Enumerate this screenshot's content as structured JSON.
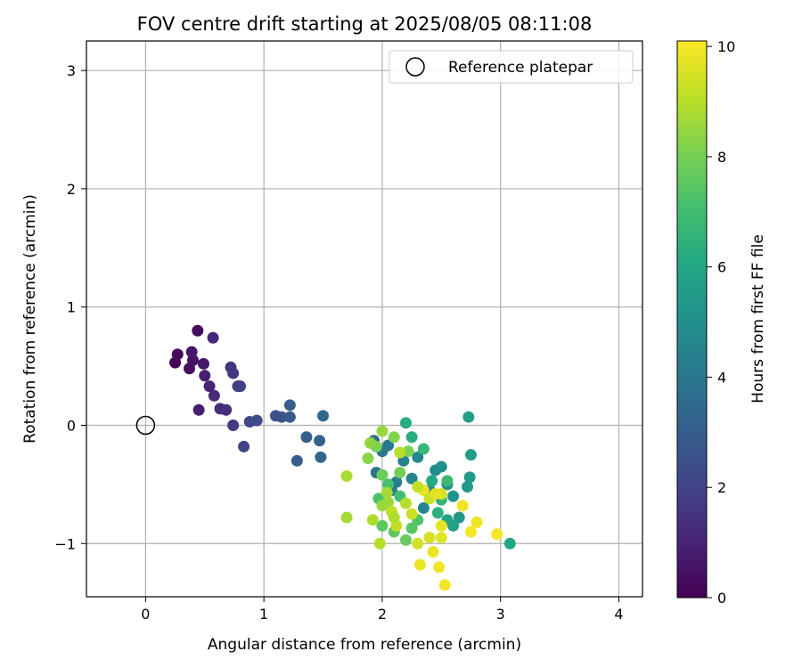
{
  "chart_data": {
    "type": "scatter",
    "title": "FOV centre drift starting at 2025/08/05 08:11:08",
    "xlabel": "Angular distance from reference (arcmin)",
    "ylabel": "Rotation from reference (arcmin)",
    "xlim": [
      -0.5,
      4.2
    ],
    "ylim": [
      -1.45,
      3.25
    ],
    "xticks": [
      0,
      1,
      2,
      3,
      4
    ],
    "yticks": [
      -1,
      0,
      1,
      2,
      3
    ],
    "xtick_labels": [
      "0",
      "1",
      "2",
      "3",
      "4"
    ],
    "ytick_labels": [
      "−1",
      "0",
      "1",
      "2",
      "3"
    ],
    "grid": true,
    "legend": {
      "position": "upper-right",
      "label": "Reference platepar",
      "marker": "open-circle"
    },
    "reference_point": {
      "x": 0,
      "y": 0
    },
    "colorbar": {
      "label": "Hours from first FF file",
      "colormap": "viridis",
      "range": [
        0,
        10.1
      ],
      "ticks": [
        0,
        2,
        4,
        6,
        8,
        10
      ],
      "tick_labels": [
        "0",
        "2",
        "4",
        "6",
        "8",
        "10"
      ]
    },
    "points": [
      {
        "x": 0.25,
        "y": 0.53,
        "hours": 0.1
      },
      {
        "x": 0.27,
        "y": 0.6,
        "hours": 0.2
      },
      {
        "x": 0.44,
        "y": 0.8,
        "hours": 0.3
      },
      {
        "x": 0.37,
        "y": 0.48,
        "hours": 0.4
      },
      {
        "x": 0.4,
        "y": 0.55,
        "hours": 0.5
      },
      {
        "x": 0.39,
        "y": 0.62,
        "hours": 0.6
      },
      {
        "x": 0.49,
        "y": 0.52,
        "hours": 0.7
      },
      {
        "x": 0.45,
        "y": 0.13,
        "hours": 0.8
      },
      {
        "x": 0.5,
        "y": 0.42,
        "hours": 0.9
      },
      {
        "x": 0.54,
        "y": 0.33,
        "hours": 1.0
      },
      {
        "x": 0.57,
        "y": 0.74,
        "hours": 1.1
      },
      {
        "x": 0.58,
        "y": 0.25,
        "hours": 1.2
      },
      {
        "x": 0.63,
        "y": 0.14,
        "hours": 1.3
      },
      {
        "x": 0.68,
        "y": 0.13,
        "hours": 1.4
      },
      {
        "x": 0.72,
        "y": 0.49,
        "hours": 1.5
      },
      {
        "x": 0.74,
        "y": 0.44,
        "hours": 1.6
      },
      {
        "x": 0.74,
        "y": 0.0,
        "hours": 1.7
      },
      {
        "x": 0.78,
        "y": 0.33,
        "hours": 1.8
      },
      {
        "x": 0.8,
        "y": 0.33,
        "hours": 1.9
      },
      {
        "x": 0.83,
        "y": -0.18,
        "hours": 2.0
      },
      {
        "x": 0.88,
        "y": 0.03,
        "hours": 2.1
      },
      {
        "x": 0.94,
        "y": 0.04,
        "hours": 2.3
      },
      {
        "x": 1.1,
        "y": 0.08,
        "hours": 2.5
      },
      {
        "x": 1.15,
        "y": 0.07,
        "hours": 2.6
      },
      {
        "x": 1.22,
        "y": 0.07,
        "hours": 2.8
      },
      {
        "x": 1.22,
        "y": 0.17,
        "hours": 2.9
      },
      {
        "x": 1.28,
        "y": -0.3,
        "hours": 3.0
      },
      {
        "x": 1.36,
        "y": -0.1,
        "hours": 3.1
      },
      {
        "x": 1.47,
        "y": -0.13,
        "hours": 3.2
      },
      {
        "x": 1.48,
        "y": -0.27,
        "hours": 3.3
      },
      {
        "x": 1.5,
        "y": 0.08,
        "hours": 3.4
      },
      {
        "x": 1.93,
        "y": -0.13,
        "hours": 3.6
      },
      {
        "x": 1.95,
        "y": -0.4,
        "hours": 3.8
      },
      {
        "x": 2.0,
        "y": -0.22,
        "hours": 4.0
      },
      {
        "x": 2.05,
        "y": -0.17,
        "hours": 4.1
      },
      {
        "x": 2.08,
        "y": -0.55,
        "hours": 4.2
      },
      {
        "x": 2.12,
        "y": -0.48,
        "hours": 4.3
      },
      {
        "x": 2.18,
        "y": -0.3,
        "hours": 4.4
      },
      {
        "x": 2.25,
        "y": -0.45,
        "hours": 4.5
      },
      {
        "x": 2.3,
        "y": -0.27,
        "hours": 4.6
      },
      {
        "x": 2.35,
        "y": -0.7,
        "hours": 4.7
      },
      {
        "x": 2.4,
        "y": -0.55,
        "hours": 4.8
      },
      {
        "x": 2.45,
        "y": -0.38,
        "hours": 4.9
      },
      {
        "x": 2.5,
        "y": -0.35,
        "hours": 5.0
      },
      {
        "x": 2.55,
        "y": -0.5,
        "hours": 5.1
      },
      {
        "x": 2.6,
        "y": -0.6,
        "hours": 5.2
      },
      {
        "x": 2.65,
        "y": -0.78,
        "hours": 5.3
      },
      {
        "x": 2.72,
        "y": -0.52,
        "hours": 5.4
      },
      {
        "x": 2.74,
        "y": -0.44,
        "hours": 5.5
      },
      {
        "x": 2.75,
        "y": -0.25,
        "hours": 5.6
      },
      {
        "x": 2.73,
        "y": 0.07,
        "hours": 5.7
      },
      {
        "x": 2.6,
        "y": -0.85,
        "hours": 5.8
      },
      {
        "x": 2.55,
        "y": -0.8,
        "hours": 5.9
      },
      {
        "x": 3.08,
        "y": -1.0,
        "hours": 6.0
      },
      {
        "x": 2.42,
        "y": -0.47,
        "hours": 6.1
      },
      {
        "x": 2.2,
        "y": 0.02,
        "hours": 6.2
      },
      {
        "x": 2.25,
        "y": -0.1,
        "hours": 6.3
      },
      {
        "x": 2.47,
        "y": -0.74,
        "hours": 6.4
      },
      {
        "x": 2.5,
        "y": -0.63,
        "hours": 6.6
      },
      {
        "x": 2.35,
        "y": -0.2,
        "hours": 6.7
      },
      {
        "x": 2.55,
        "y": -0.47,
        "hours": 6.8
      },
      {
        "x": 2.15,
        "y": -0.6,
        "hours": 7.0
      },
      {
        "x": 2.05,
        "y": -0.5,
        "hours": 7.1
      },
      {
        "x": 1.97,
        "y": -0.62,
        "hours": 7.2
      },
      {
        "x": 2.3,
        "y": -0.8,
        "hours": 7.3
      },
      {
        "x": 2.25,
        "y": -0.87,
        "hours": 7.4
      },
      {
        "x": 2.0,
        "y": -0.85,
        "hours": 7.5
      },
      {
        "x": 2.1,
        "y": -0.9,
        "hours": 7.6
      },
      {
        "x": 2.2,
        "y": -0.97,
        "hours": 7.7
      },
      {
        "x": 2.0,
        "y": -0.42,
        "hours": 7.8
      },
      {
        "x": 2.15,
        "y": -0.4,
        "hours": 7.9
      },
      {
        "x": 2.22,
        "y": -0.22,
        "hours": 8.0
      },
      {
        "x": 1.95,
        "y": -0.18,
        "hours": 8.1
      },
      {
        "x": 2.1,
        "y": -0.1,
        "hours": 8.2
      },
      {
        "x": 1.88,
        "y": -0.28,
        "hours": 8.3
      },
      {
        "x": 1.9,
        "y": -0.15,
        "hours": 8.4
      },
      {
        "x": 2.0,
        "y": -0.05,
        "hours": 8.5
      },
      {
        "x": 2.05,
        "y": -0.65,
        "hours": 8.6
      },
      {
        "x": 1.7,
        "y": -0.78,
        "hours": 8.7
      },
      {
        "x": 1.7,
        "y": -0.43,
        "hours": 8.8
      },
      {
        "x": 1.92,
        "y": -0.8,
        "hours": 8.9
      },
      {
        "x": 1.98,
        "y": -1.0,
        "hours": 9.0
      },
      {
        "x": 2.08,
        "y": -0.73,
        "hours": 9.1
      },
      {
        "x": 2.12,
        "y": -0.85,
        "hours": 9.2
      },
      {
        "x": 2.25,
        "y": -0.75,
        "hours": 9.3
      },
      {
        "x": 2.3,
        "y": -1.0,
        "hours": 9.4
      },
      {
        "x": 2.4,
        "y": -0.95,
        "hours": 9.5
      },
      {
        "x": 2.5,
        "y": -0.95,
        "hours": 9.6
      },
      {
        "x": 2.5,
        "y": -0.85,
        "hours": 9.7
      },
      {
        "x": 2.32,
        "y": -1.18,
        "hours": 9.8
      },
      {
        "x": 2.43,
        "y": -1.07,
        "hours": 9.85
      },
      {
        "x": 2.48,
        "y": -1.2,
        "hours": 9.9
      },
      {
        "x": 2.53,
        "y": -1.35,
        "hours": 9.95
      },
      {
        "x": 2.97,
        "y": -0.92,
        "hours": 10.0
      },
      {
        "x": 2.75,
        "y": -0.9,
        "hours": 10.0
      },
      {
        "x": 2.68,
        "y": -0.68,
        "hours": 9.9
      },
      {
        "x": 2.35,
        "y": -0.55,
        "hours": 9.8
      },
      {
        "x": 2.5,
        "y": -0.58,
        "hours": 9.5
      },
      {
        "x": 2.4,
        "y": -0.62,
        "hours": 9.3
      },
      {
        "x": 2.3,
        "y": -0.52,
        "hours": 9.2
      },
      {
        "x": 2.2,
        "y": -0.66,
        "hours": 9.0
      },
      {
        "x": 2.1,
        "y": -0.78,
        "hours": 8.9
      },
      {
        "x": 2.04,
        "y": -0.57,
        "hours": 8.7
      },
      {
        "x": 2.0,
        "y": -0.68,
        "hours": 8.6
      },
      {
        "x": 2.45,
        "y": -0.58,
        "hours": 9.7
      },
      {
        "x": 2.8,
        "y": -0.82,
        "hours": 9.9
      },
      {
        "x": 2.15,
        "y": -0.23,
        "hours": 9.0
      }
    ]
  }
}
